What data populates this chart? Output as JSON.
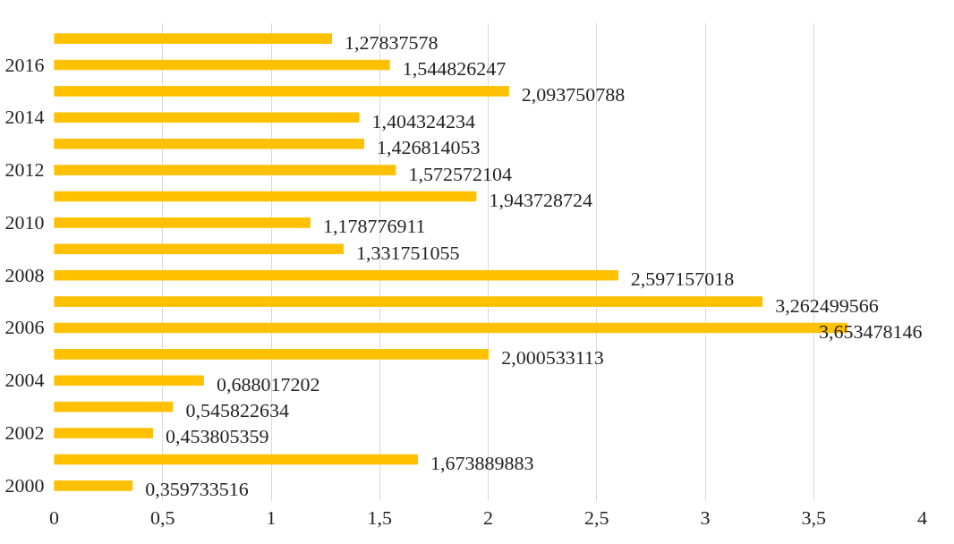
{
  "chart_data": {
    "type": "bar",
    "orientation": "horizontal",
    "categories": [
      null,
      "2016",
      null,
      "2014",
      null,
      "2012",
      null,
      "2010",
      null,
      "2008",
      null,
      "2006",
      null,
      "2004",
      null,
      "2002",
      null,
      "2000"
    ],
    "values": [
      1.27837578,
      1.544826247,
      2.093750788,
      1.404324234,
      1.426814053,
      1.572572104,
      1.943728724,
      1.178776911,
      1.331751055,
      2.597157018,
      3.262499566,
      3.653478146,
      2.000533113,
      0.688017202,
      0.545822634,
      0.453805359,
      1.673889883,
      0.359733516
    ],
    "value_labels": [
      "1,27837578",
      "1,544826247",
      "2,093750788",
      "1,404324234",
      "1,426814053",
      "1,572572104",
      "1,943728724",
      "1,178776911",
      "1,331751055",
      "2,597157018",
      "3,262499566",
      "3,653478146",
      "2,000533113",
      "0,688017202",
      "0,545822634",
      "0,453805359",
      "1,673889883",
      "0,359733516"
    ],
    "color": "#ffc000",
    "xlim": [
      0,
      4
    ],
    "xticks": [
      0,
      {
        "value": 0.5,
        "label": "0,5"
      },
      1,
      {
        "value": 1.5,
        "label": "1,5"
      },
      2,
      {
        "value": 2.5,
        "label": "2,5"
      },
      3,
      {
        "value": 3.5,
        "label": "3,5"
      },
      4
    ],
    "grid": "x"
  }
}
